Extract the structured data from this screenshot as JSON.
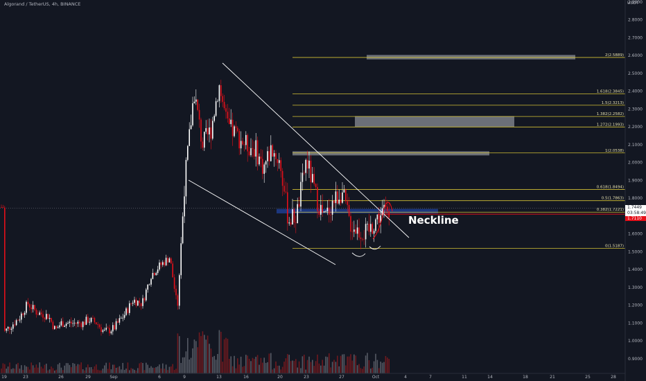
{
  "header": {
    "title": "Algorand / TetherUS, 4h, BINANCE",
    "currency": "USDT"
  },
  "annotations": {
    "neckline_label": "Neckline"
  },
  "price_tags": {
    "current": "1.7449",
    "countdown": "03:58:49",
    "red_level": "1.7110"
  },
  "colors": {
    "background": "#131722",
    "up_candle": "#ffffff",
    "down_candle": "#e5101a",
    "fib_line": "#d4c234",
    "trendline": "#ffffff",
    "zone_gray": "#8a8d96",
    "zone_blue": "#1e3d8f",
    "red_line": "#e5101a"
  },
  "chart_data": {
    "type": "candlestick",
    "title": "Algorand / TetherUS, 4h, BINANCE",
    "ylabel": "USDT",
    "ylim": [
      0.87,
      2.91
    ],
    "y_ticks": [
      "0.9000",
      "1.0000",
      "1.1000",
      "1.2000",
      "1.3000",
      "1.4000",
      "1.5000",
      "1.6000",
      "1.7000",
      "1.8000",
      "1.9000",
      "2.0000",
      "2.1000",
      "2.2000",
      "2.3000",
      "2.4000",
      "2.5000",
      "2.6000",
      "2.7000",
      "2.8000",
      "2.9000"
    ],
    "x_ticks": [
      "19",
      "23",
      "26",
      "29",
      "Sep",
      "6",
      "9",
      "13",
      "16",
      "20",
      "23",
      "27",
      "Oct",
      "4",
      "7",
      "11",
      "14",
      "18",
      "21",
      "25",
      "28"
    ],
    "price_path": [
      {
        "x": "19",
        "y": 1.05
      },
      {
        "x": "21",
        "y": 1.13
      },
      {
        "x": "22",
        "y": 1.21
      },
      {
        "x": "23",
        "y": 1.16
      },
      {
        "x": "24",
        "y": 1.14
      },
      {
        "x": "25",
        "y": 1.06
      },
      {
        "x": "26",
        "y": 1.1
      },
      {
        "x": "28",
        "y": 1.1
      },
      {
        "x": "29",
        "y": 1.12
      },
      {
        "x": "30",
        "y": 1.1
      },
      {
        "x": "31",
        "y": 1.05
      },
      {
        "x": "Sep",
        "y": 1.07
      },
      {
        "x": "2",
        "y": 1.15
      },
      {
        "x": "3",
        "y": 1.23
      },
      {
        "x": "4",
        "y": 1.21
      },
      {
        "x": "5",
        "y": 1.37
      },
      {
        "x": "6",
        "y": 1.42
      },
      {
        "x": "7",
        "y": 1.47
      },
      {
        "x": "8",
        "y": 1.18
      },
      {
        "x": "9",
        "y": 1.87
      },
      {
        "x": "10",
        "y": 2.4
      },
      {
        "x": "11",
        "y": 2.1
      },
      {
        "x": "12",
        "y": 2.18
      },
      {
        "x": "13",
        "y": 2.44
      },
      {
        "x": "14",
        "y": 2.2
      },
      {
        "x": "15",
        "y": 2.16
      },
      {
        "x": "16",
        "y": 2.1
      },
      {
        "x": "17",
        "y": 2.08
      },
      {
        "x": "18",
        "y": 1.97
      },
      {
        "x": "19",
        "y": 2.08
      },
      {
        "x": "20",
        "y": 2.0
      },
      {
        "x": "21",
        "y": 1.68
      },
      {
        "x": "22",
        "y": 1.7
      },
      {
        "x": "23",
        "y": 2.02
      },
      {
        "x": "24",
        "y": 1.82
      },
      {
        "x": "25",
        "y": 1.68
      },
      {
        "x": "26",
        "y": 1.78
      },
      {
        "x": "27",
        "y": 1.84
      },
      {
        "x": "28",
        "y": 1.66
      },
      {
        "x": "29",
        "y": 1.62
      },
      {
        "x": "30",
        "y": 1.6
      },
      {
        "x": "Oct",
        "y": 1.68
      },
      {
        "x": "2",
        "y": 1.75
      }
    ],
    "fibonacci_levels": [
      {
        "label": "0(1.5187)",
        "value": 1.5187
      },
      {
        "label": "0.382(1.7221)",
        "value": 1.7221
      },
      {
        "label": "0.5(1.7863)",
        "value": 1.7863
      },
      {
        "label": "0.618(1.8494)",
        "value": 1.8494
      },
      {
        "label": "1(2.0538)",
        "value": 2.0538
      },
      {
        "label": "1.272(2.1993)",
        "value": 2.1993
      },
      {
        "label": "1.382(2.2582)",
        "value": 2.2582
      },
      {
        "label": "1.5(2.3213)",
        "value": 2.3213
      },
      {
        "label": "1.618(2.3845)",
        "value": 2.3845
      },
      {
        "label": "2(2.5889)",
        "value": 2.5889
      }
    ],
    "zones": [
      {
        "color": "gray",
        "from_x": "Oct",
        "to_x": "24",
        "y_low": 2.578,
        "y_high": 2.603
      },
      {
        "color": "gray",
        "from_x": "26",
        "to_x": "19",
        "y_low": 2.2,
        "y_high": 2.26
      },
      {
        "color": "gray",
        "from_x": "20",
        "to_x": "14",
        "y_low": 2.04,
        "y_high": 2.063
      },
      {
        "color": "blue",
        "from_x": "19",
        "to_x": "5",
        "y_low": 1.715,
        "y_high": 1.74
      }
    ],
    "current_price": 1.7449,
    "red_level": 1.711,
    "grid": false,
    "legend": "none"
  }
}
